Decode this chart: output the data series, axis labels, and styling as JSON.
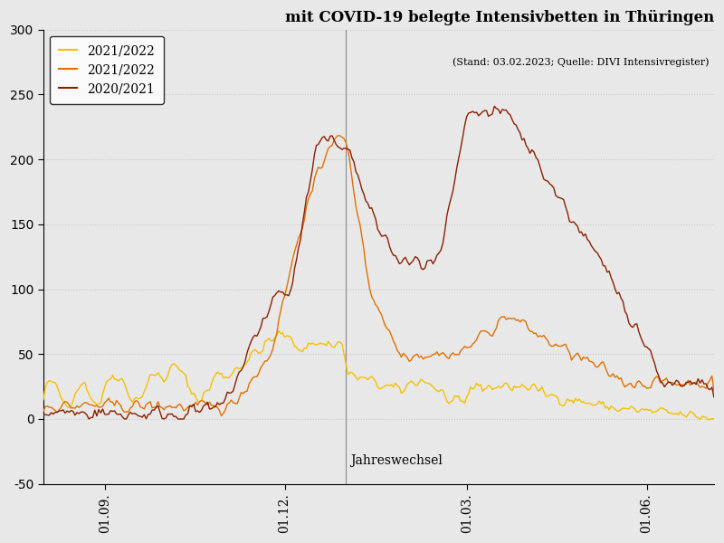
{
  "title": "mit COVID-19 belegte Intensivbetten in Thüringen",
  "subtitle": "(Stand: 03.02.2023; Quelle: DIVI Intensivregister)",
  "ylim": [
    -50,
    300
  ],
  "yticks": [
    -50,
    0,
    50,
    100,
    150,
    200,
    250,
    300
  ],
  "xtick_labels": [
    "01.09.",
    "01.12.",
    "01.03.",
    "01.06."
  ],
  "xtick_positions": [
    31,
    122,
    214,
    305
  ],
  "jahreswechsel_x": 153,
  "background_color": "#e8e8e8",
  "grid_color": "#c8c8c8",
  "legend_labels": [
    "2021/2022",
    "2021/2022",
    "2020/2021"
  ],
  "legend_colors": [
    "#f5c000",
    "#e07000",
    "#8b2000"
  ],
  "line_colors": [
    "#f5c000",
    "#e07000",
    "#8b2000"
  ],
  "n_days": 340
}
